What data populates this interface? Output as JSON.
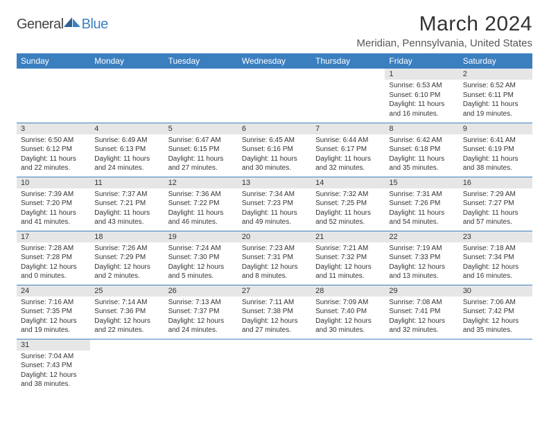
{
  "logo": {
    "text1": "General",
    "text2": "Blue"
  },
  "title": "March 2024",
  "location": "Meridian, Pennsylvania, United States",
  "colors": {
    "header_bg": "#3b7fbf",
    "header_text": "#ffffff",
    "day_num_bg": "#e6e6e6",
    "row_border": "#3b7fbf",
    "text": "#333333"
  },
  "weekdays": [
    "Sunday",
    "Monday",
    "Tuesday",
    "Wednesday",
    "Thursday",
    "Friday",
    "Saturday"
  ],
  "weeks": [
    [
      null,
      null,
      null,
      null,
      null,
      {
        "n": "1",
        "sr": "6:53 AM",
        "ss": "6:10 PM",
        "dl": "11 hours and 16 minutes."
      },
      {
        "n": "2",
        "sr": "6:52 AM",
        "ss": "6:11 PM",
        "dl": "11 hours and 19 minutes."
      }
    ],
    [
      {
        "n": "3",
        "sr": "6:50 AM",
        "ss": "6:12 PM",
        "dl": "11 hours and 22 minutes."
      },
      {
        "n": "4",
        "sr": "6:49 AM",
        "ss": "6:13 PM",
        "dl": "11 hours and 24 minutes."
      },
      {
        "n": "5",
        "sr": "6:47 AM",
        "ss": "6:15 PM",
        "dl": "11 hours and 27 minutes."
      },
      {
        "n": "6",
        "sr": "6:45 AM",
        "ss": "6:16 PM",
        "dl": "11 hours and 30 minutes."
      },
      {
        "n": "7",
        "sr": "6:44 AM",
        "ss": "6:17 PM",
        "dl": "11 hours and 32 minutes."
      },
      {
        "n": "8",
        "sr": "6:42 AM",
        "ss": "6:18 PM",
        "dl": "11 hours and 35 minutes."
      },
      {
        "n": "9",
        "sr": "6:41 AM",
        "ss": "6:19 PM",
        "dl": "11 hours and 38 minutes."
      }
    ],
    [
      {
        "n": "10",
        "sr": "7:39 AM",
        "ss": "7:20 PM",
        "dl": "11 hours and 41 minutes."
      },
      {
        "n": "11",
        "sr": "7:37 AM",
        "ss": "7:21 PM",
        "dl": "11 hours and 43 minutes."
      },
      {
        "n": "12",
        "sr": "7:36 AM",
        "ss": "7:22 PM",
        "dl": "11 hours and 46 minutes."
      },
      {
        "n": "13",
        "sr": "7:34 AM",
        "ss": "7:23 PM",
        "dl": "11 hours and 49 minutes."
      },
      {
        "n": "14",
        "sr": "7:32 AM",
        "ss": "7:25 PM",
        "dl": "11 hours and 52 minutes."
      },
      {
        "n": "15",
        "sr": "7:31 AM",
        "ss": "7:26 PM",
        "dl": "11 hours and 54 minutes."
      },
      {
        "n": "16",
        "sr": "7:29 AM",
        "ss": "7:27 PM",
        "dl": "11 hours and 57 minutes."
      }
    ],
    [
      {
        "n": "17",
        "sr": "7:28 AM",
        "ss": "7:28 PM",
        "dl": "12 hours and 0 minutes."
      },
      {
        "n": "18",
        "sr": "7:26 AM",
        "ss": "7:29 PM",
        "dl": "12 hours and 2 minutes."
      },
      {
        "n": "19",
        "sr": "7:24 AM",
        "ss": "7:30 PM",
        "dl": "12 hours and 5 minutes."
      },
      {
        "n": "20",
        "sr": "7:23 AM",
        "ss": "7:31 PM",
        "dl": "12 hours and 8 minutes."
      },
      {
        "n": "21",
        "sr": "7:21 AM",
        "ss": "7:32 PM",
        "dl": "12 hours and 11 minutes."
      },
      {
        "n": "22",
        "sr": "7:19 AM",
        "ss": "7:33 PM",
        "dl": "12 hours and 13 minutes."
      },
      {
        "n": "23",
        "sr": "7:18 AM",
        "ss": "7:34 PM",
        "dl": "12 hours and 16 minutes."
      }
    ],
    [
      {
        "n": "24",
        "sr": "7:16 AM",
        "ss": "7:35 PM",
        "dl": "12 hours and 19 minutes."
      },
      {
        "n": "25",
        "sr": "7:14 AM",
        "ss": "7:36 PM",
        "dl": "12 hours and 22 minutes."
      },
      {
        "n": "26",
        "sr": "7:13 AM",
        "ss": "7:37 PM",
        "dl": "12 hours and 24 minutes."
      },
      {
        "n": "27",
        "sr": "7:11 AM",
        "ss": "7:38 PM",
        "dl": "12 hours and 27 minutes."
      },
      {
        "n": "28",
        "sr": "7:09 AM",
        "ss": "7:40 PM",
        "dl": "12 hours and 30 minutes."
      },
      {
        "n": "29",
        "sr": "7:08 AM",
        "ss": "7:41 PM",
        "dl": "12 hours and 32 minutes."
      },
      {
        "n": "30",
        "sr": "7:06 AM",
        "ss": "7:42 PM",
        "dl": "12 hours and 35 minutes."
      }
    ],
    [
      {
        "n": "31",
        "sr": "7:04 AM",
        "ss": "7:43 PM",
        "dl": "12 hours and 38 minutes."
      },
      null,
      null,
      null,
      null,
      null,
      null
    ]
  ],
  "labels": {
    "sunrise": "Sunrise:",
    "sunset": "Sunset:",
    "daylight": "Daylight:"
  }
}
